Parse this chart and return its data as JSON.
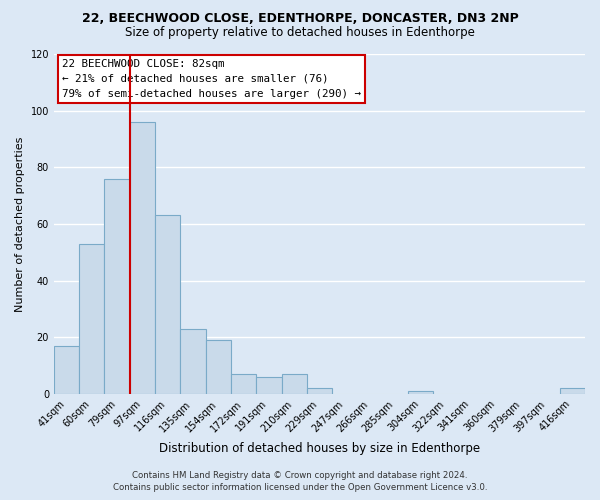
{
  "title": "22, BEECHWOOD CLOSE, EDENTHORPE, DONCASTER, DN3 2NP",
  "subtitle": "Size of property relative to detached houses in Edenthorpe",
  "xlabel": "Distribution of detached houses by size in Edenthorpe",
  "ylabel": "Number of detached properties",
  "bin_labels": [
    "41sqm",
    "60sqm",
    "79sqm",
    "97sqm",
    "116sqm",
    "135sqm",
    "154sqm",
    "172sqm",
    "191sqm",
    "210sqm",
    "229sqm",
    "247sqm",
    "266sqm",
    "285sqm",
    "304sqm",
    "322sqm",
    "341sqm",
    "360sqm",
    "379sqm",
    "397sqm",
    "416sqm"
  ],
  "bar_values": [
    17,
    53,
    76,
    96,
    63,
    23,
    19,
    7,
    6,
    7,
    2,
    0,
    0,
    0,
    1,
    0,
    0,
    0,
    0,
    0,
    2
  ],
  "bar_color": "#c9daea",
  "bar_edge_color": "#7aaac8",
  "ylim": [
    0,
    120
  ],
  "yticks": [
    0,
    20,
    40,
    60,
    80,
    100,
    120
  ],
  "vline_color": "#cc0000",
  "annotation_title": "22 BEECHWOOD CLOSE: 82sqm",
  "annotation_line1": "← 21% of detached houses are smaller (76)",
  "annotation_line2": "79% of semi-detached houses are larger (290) →",
  "annotation_box_color": "#ffffff",
  "annotation_box_edge": "#cc0000",
  "footer_line1": "Contains HM Land Registry data © Crown copyright and database right 2024.",
  "footer_line2": "Contains public sector information licensed under the Open Government Licence v3.0.",
  "background_color": "#dce8f5",
  "grid_color": "#ffffff",
  "title_fontsize": 9,
  "subtitle_fontsize": 8.5,
  "ylabel_fontsize": 8,
  "xlabel_fontsize": 8.5
}
